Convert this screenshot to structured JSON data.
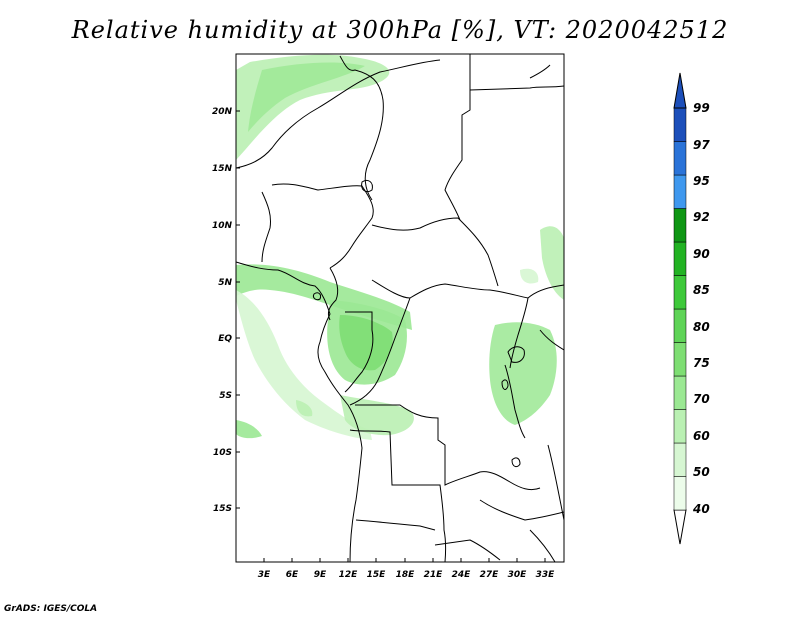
{
  "title": "Relative humidity at 300hPa [%], VT: 2020042512",
  "credit": "GrADS: IGES/COLA",
  "axes": {
    "lat_ticks": [
      "20N",
      "15N",
      "10N",
      "5N",
      "EQ",
      "5S",
      "10S",
      "15S"
    ],
    "lon_ticks": [
      "3E",
      "6E",
      "9E",
      "12E",
      "15E",
      "18E",
      "21E",
      "24E",
      "27E",
      "30E",
      "33E"
    ],
    "lon_range": [
      0,
      35
    ],
    "lat_range": [
      -20,
      25
    ]
  },
  "colorbar": {
    "levels": [
      "40",
      "50",
      "60",
      "70",
      "75",
      "80",
      "85",
      "90",
      "92",
      "95",
      "97",
      "99"
    ],
    "colors": [
      "#ecfcea",
      "#d6f6d2",
      "#baf0b3",
      "#9be893",
      "#7ede73",
      "#5fd457",
      "#3ec93a",
      "#22b323",
      "#0f9614",
      "#3f98ee",
      "#2a73d8",
      "#1c4fba"
    ]
  }
}
